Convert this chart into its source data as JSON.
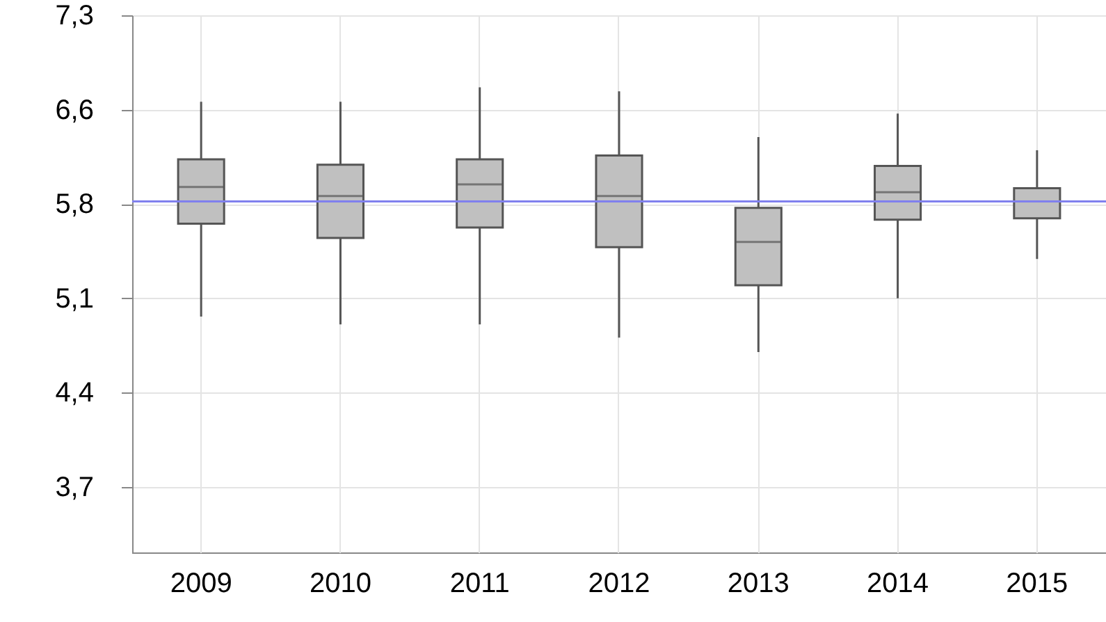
{
  "chart_data": {
    "type": "box",
    "categories": [
      "2009",
      "2010",
      "2011",
      "2012",
      "2013",
      "2014",
      "2015"
    ],
    "series": [
      {
        "color": "#c0c0c0",
        "boxes": [
          {
            "low": 4.98,
            "q1": 5.69,
            "median": 5.97,
            "q3": 6.18,
            "high": 6.62
          },
          {
            "low": 4.92,
            "q1": 5.58,
            "median": 5.9,
            "q3": 6.14,
            "high": 6.62
          },
          {
            "low": 4.92,
            "q1": 5.66,
            "median": 5.99,
            "q3": 6.18,
            "high": 6.73
          },
          {
            "low": 4.82,
            "q1": 5.51,
            "median": 5.9,
            "q3": 6.21,
            "high": 6.7
          },
          {
            "low": 4.71,
            "q1": 5.22,
            "median": 5.55,
            "q3": 5.81,
            "high": 6.35
          },
          {
            "low": 5.12,
            "q1": 5.72,
            "median": 5.93,
            "q3": 6.13,
            "high": 6.53
          },
          {
            "low": 5.42,
            "q1": 5.73,
            "median": 5.86,
            "q3": 5.96,
            "high": 6.25
          }
        ]
      }
    ],
    "ylim": [
      3.18,
      7.28
    ],
    "yticks": [
      {
        "value": 3.68,
        "label": "3,7"
      },
      {
        "value": 4.4,
        "label": "4,4"
      },
      {
        "value": 5.12,
        "label": "5,1"
      },
      {
        "value": 5.84,
        "label": "5,8"
      },
      {
        "value": 6.56,
        "label": "6,6"
      },
      {
        "value": 7.28,
        "label": "7,3"
      }
    ],
    "ref_lines": [
      {
        "axis": "y",
        "value": 5.86,
        "color": "#8080ee"
      }
    ],
    "grid": true
  }
}
